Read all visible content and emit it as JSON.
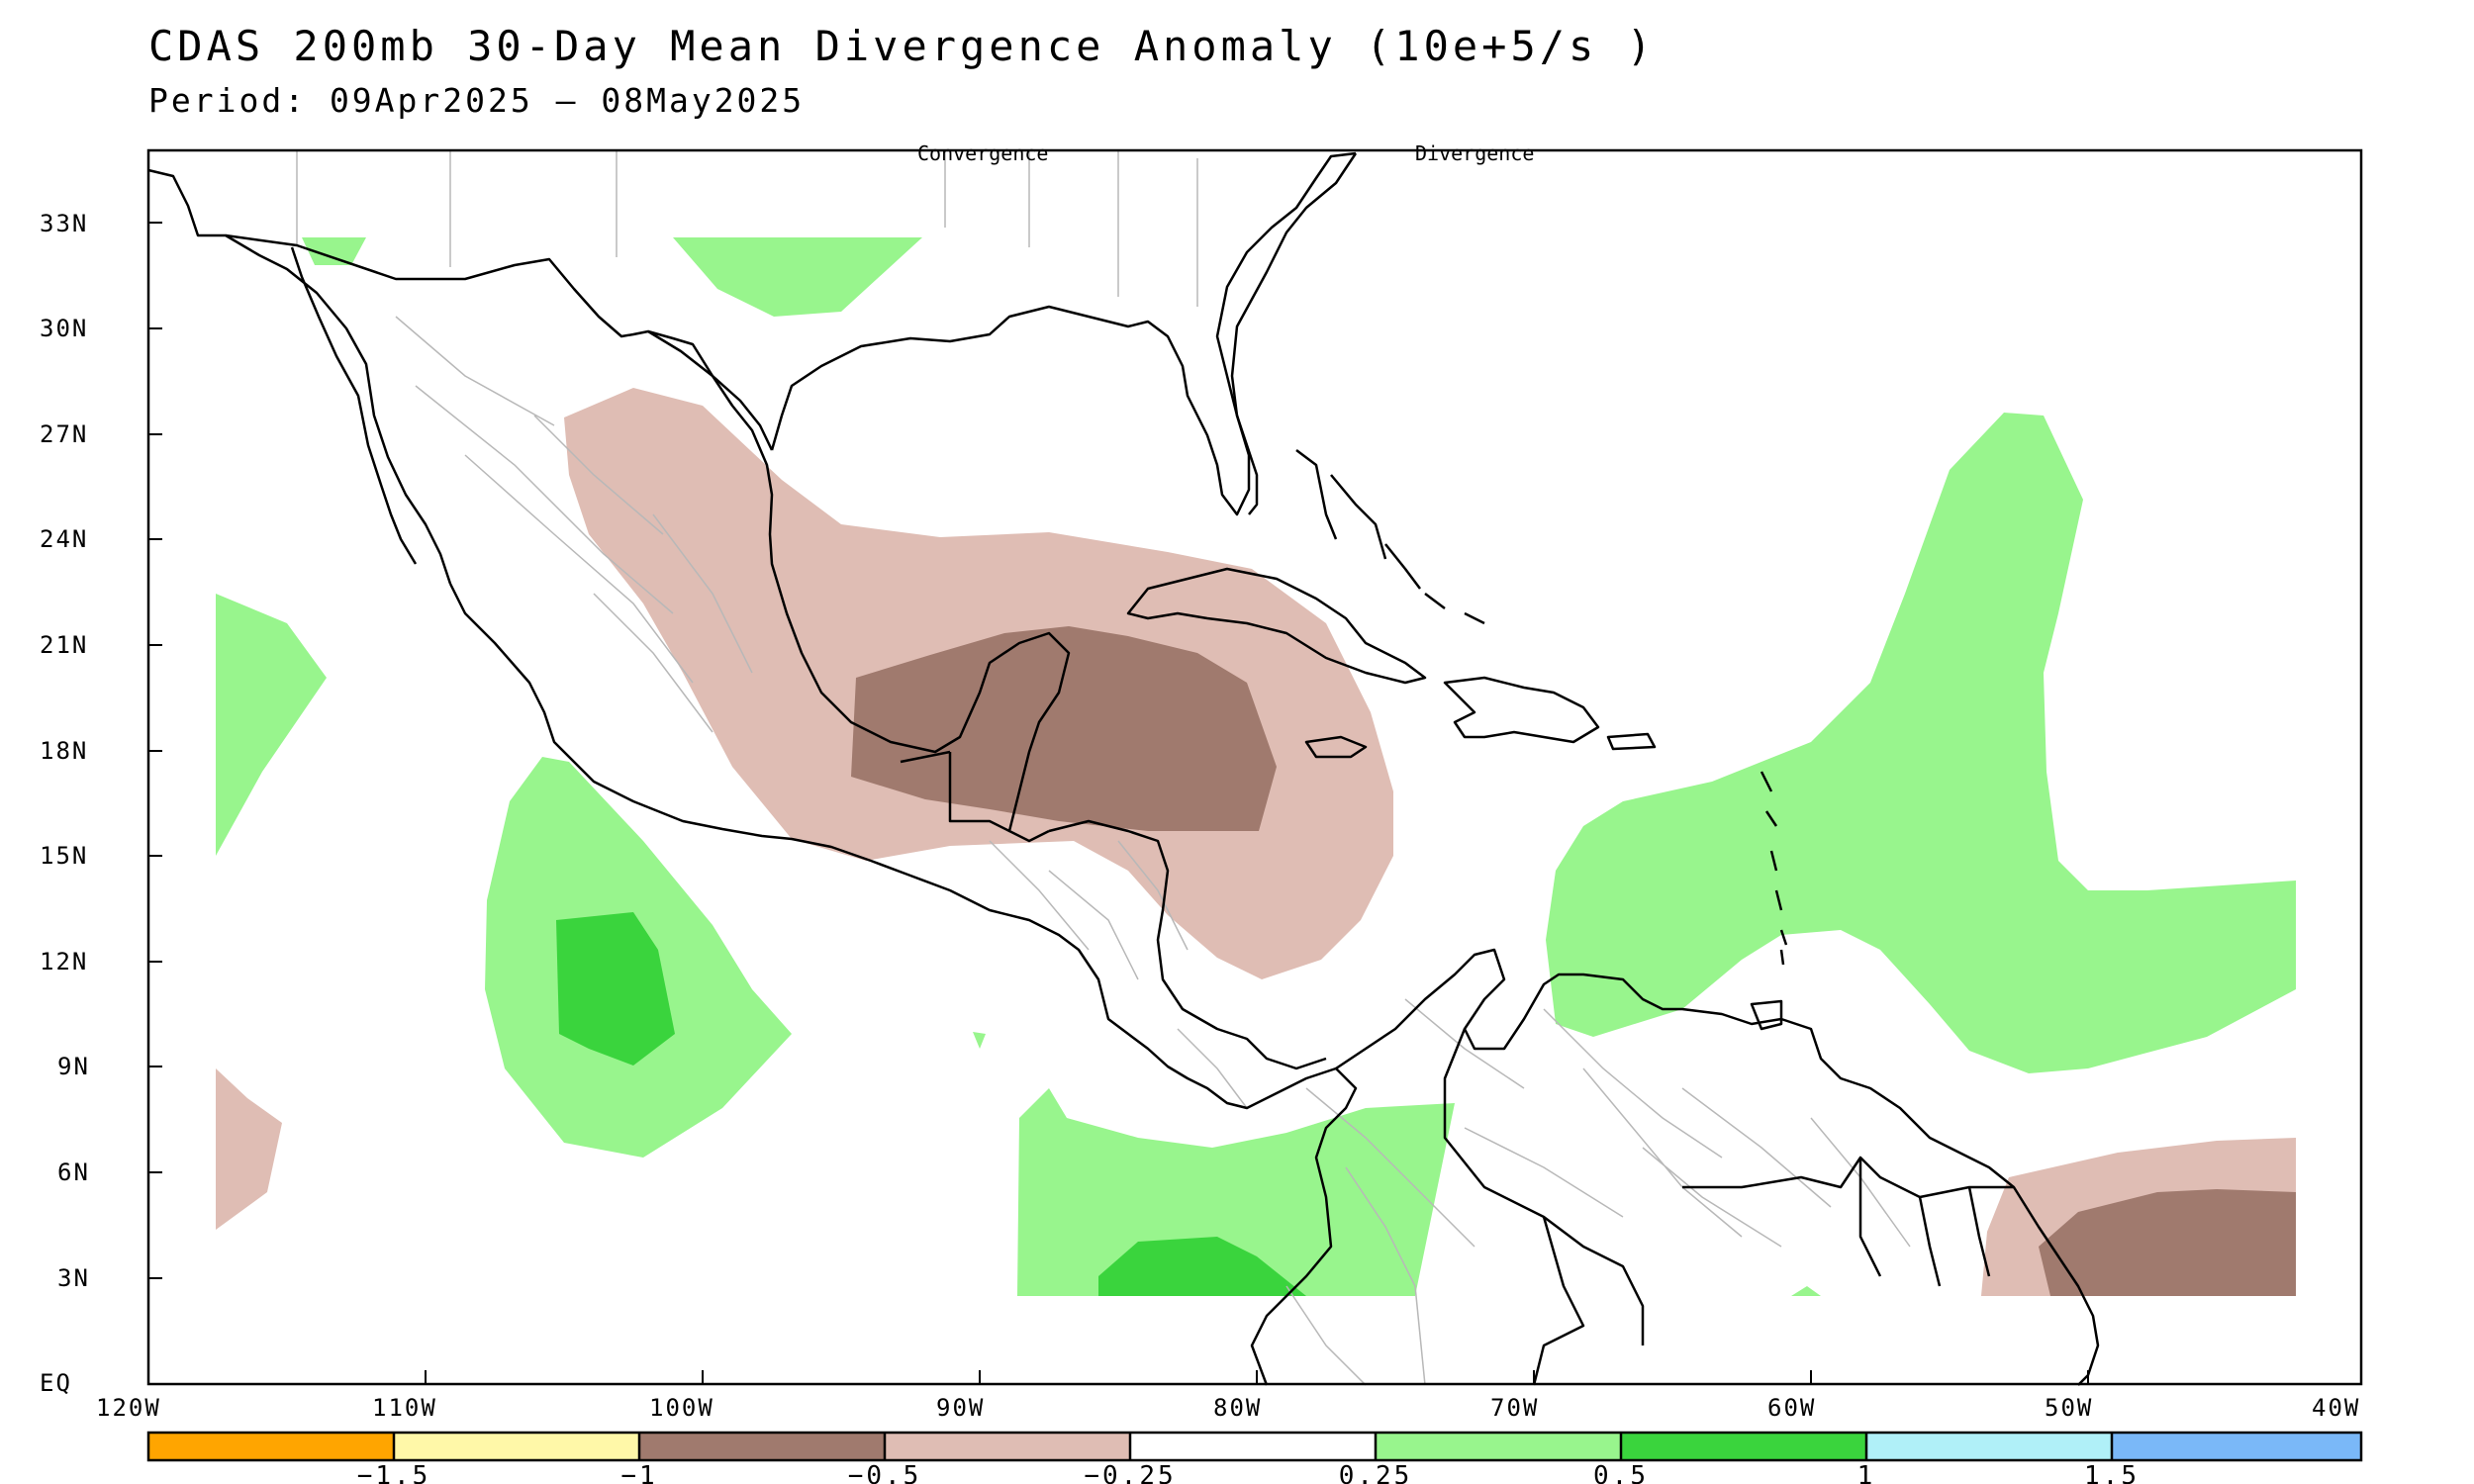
{
  "title": "CDAS 200mb 30-Day Mean Divergence Anomaly (10e+5/s )",
  "period": "Period: 09Apr2025 – 08May2025",
  "top_labels": {
    "convergence": "Convergence",
    "divergence": "Divergence"
  },
  "lat_labels": [
    "33N",
    "30N",
    "27N",
    "24N",
    "21N",
    "18N",
    "15N",
    "12N",
    "9N",
    "6N",
    "3N",
    "EQ"
  ],
  "lon_labels": [
    "120W",
    "110W",
    "100W",
    "90W",
    "80W",
    "70W",
    "60W",
    "50W",
    "40W"
  ],
  "legend": {
    "colors": [
      "#ffa500",
      "#fff8a8",
      "#a07a6e",
      "#dfbdb4",
      "#ffffff",
      "#98f58d",
      "#3ad43d",
      "#b0f0f8",
      "#7ab8f8"
    ],
    "tick_labels": [
      "−1.5",
      "−1",
      "−0.5",
      "−0.25",
      "0.25",
      "0.5",
      "1",
      "1.5"
    ]
  },
  "map_colors": {
    "div_weak": "#98f58d",
    "div_strong": "#3ad43d",
    "conv_weak": "#dfbdb4",
    "conv_strong": "#a07a6e",
    "coast": "#000000",
    "borders": "#b8b8b8"
  }
}
